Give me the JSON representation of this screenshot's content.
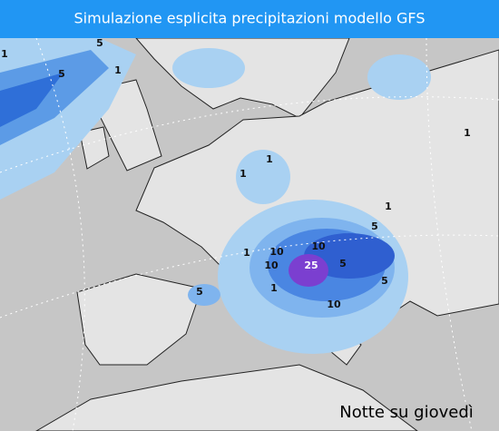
{
  "map": {
    "title": "Simulazione esplicita precipitazioni modello GFS",
    "caption": "Notte su giovedì",
    "contour_labels": [
      5,
      5,
      1,
      1,
      1,
      1,
      25,
      10,
      10,
      10,
      5,
      5,
      1,
      5,
      10,
      5,
      1,
      1,
      1
    ]
  }
}
